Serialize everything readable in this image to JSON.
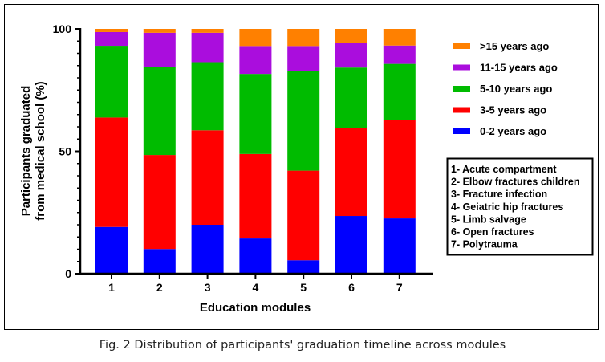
{
  "chart_data": {
    "type": "bar",
    "stacked": true,
    "xlabel": "Education modules",
    "ylabel": "Participants graduated from medical school (%)",
    "ylabel_lines": [
      "Participants graduated",
      "from medical school (%)"
    ],
    "ylim": [
      0,
      100
    ],
    "yticks": [
      "0",
      "50",
      "100"
    ],
    "categories": [
      "1",
      "2",
      "3",
      "4",
      "5",
      "6",
      "7"
    ],
    "series": [
      {
        "name": "0-2 years ago",
        "color": "#0000ff",
        "values": [
          19.1,
          10.1,
          20.0,
          14.4,
          5.5,
          23.6,
          22.6
        ]
      },
      {
        "name": "3-5 years ago",
        "color": "#ff0000",
        "values": [
          44.7,
          38.4,
          38.6,
          34.5,
          36.6,
          35.8,
          40.2
        ]
      },
      {
        "name": "5-10 years ago",
        "color": "#00bb00",
        "values": [
          29.3,
          35.9,
          27.8,
          32.7,
          40.6,
          24.8,
          22.9
        ]
      },
      {
        "name": "11-15 years ago",
        "color": "#aa0ddd",
        "values": [
          5.6,
          14.0,
          12.0,
          11.4,
          10.3,
          9.9,
          7.5
        ]
      },
      {
        "name": ">15 years ago",
        "color": "#ff8000",
        "values": [
          1.3,
          1.6,
          1.6,
          7.0,
          7.0,
          5.9,
          6.8
        ]
      }
    ],
    "legend_position": "right",
    "module_key": [
      "1- Acute compartment",
      "2- Elbow fractures children",
      "3- Fracture infection",
      "4- Geiatric hip fractures",
      "5- Limb salvage",
      "6- Open fractures",
      "7- Polytrauma"
    ],
    "grid": false
  },
  "caption": "Fig. 2 Distribution of participants' graduation timeline across modules"
}
